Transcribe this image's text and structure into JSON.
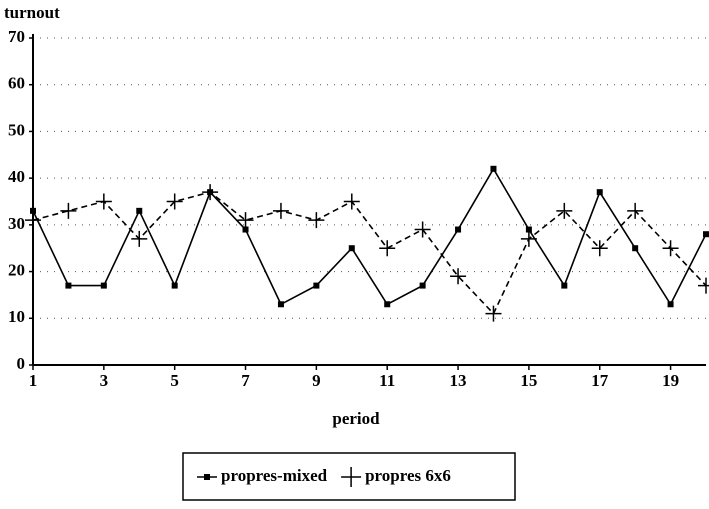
{
  "chart_data": {
    "type": "line",
    "y_label": "turnout",
    "x_label": "period",
    "x": [
      1,
      2,
      3,
      4,
      5,
      6,
      7,
      8,
      9,
      10,
      11,
      12,
      13,
      14,
      15,
      16,
      17,
      18,
      19,
      20
    ],
    "series": [
      {
        "name": "propres-mixed",
        "color": "#000000",
        "line_style": "solid",
        "marker": "square",
        "values": [
          33,
          17,
          17,
          33,
          17,
          37,
          29,
          13,
          17,
          25,
          13,
          17,
          29,
          42,
          29,
          17,
          37,
          25,
          13,
          28
        ]
      },
      {
        "name": "propres 6x6",
        "color": "#000000",
        "line_style": "dashed",
        "marker": "plus",
        "values": [
          31,
          33,
          35,
          27,
          35,
          37,
          31,
          33,
          31,
          35,
          25,
          29,
          19,
          11,
          27,
          33,
          25,
          33,
          25,
          17
        ]
      }
    ],
    "xlim": [
      1,
      20
    ],
    "xticks": [
      1,
      3,
      5,
      7,
      9,
      11,
      13,
      15,
      17,
      19
    ],
    "ylim": [
      0,
      70
    ],
    "yticks": [
      0,
      10,
      20,
      30,
      40,
      50,
      60,
      70
    ],
    "grid": true,
    "legend": "bottom"
  }
}
